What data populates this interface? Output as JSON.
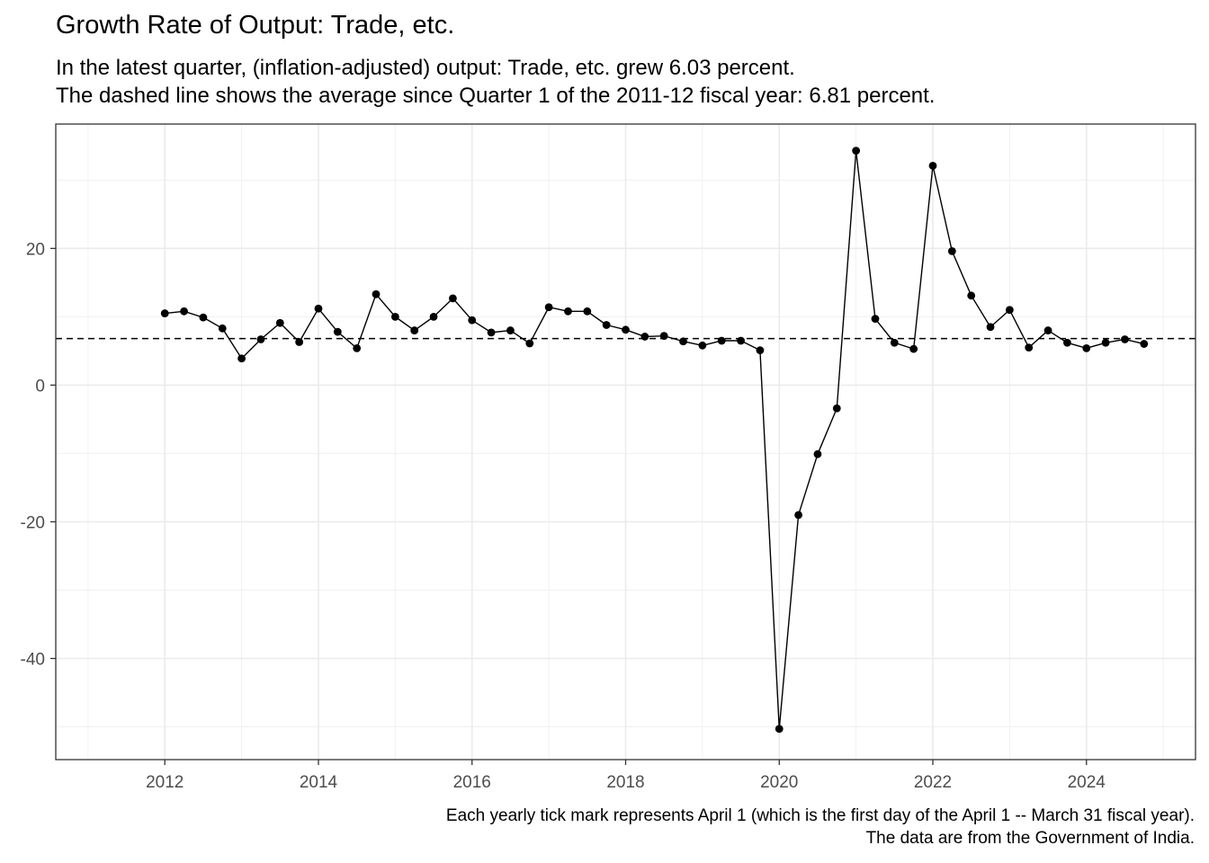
{
  "chart_data": {
    "type": "line",
    "title": "Growth Rate of Output: Trade, etc.",
    "subtitle": [
      "In the latest quarter, (inflation-adjusted) output: Trade, etc. grew 6.03 percent.",
      "The dashed line shows the average since Quarter 1 of the 2011-12 fiscal year: 6.81 percent."
    ],
    "caption": [
      "Each yearly tick mark represents April 1 (which is the first day of the April 1 -- March 31 fiscal year).",
      "The data are from the Government of India."
    ],
    "xlabel": "",
    "ylabel": "",
    "xlim": [
      2010.58,
      2025.42
    ],
    "ylim": [
      -54.8,
      38.2
    ],
    "x_ticks": [
      2012,
      2014,
      2016,
      2018,
      2020,
      2022,
      2024
    ],
    "y_ticks": [
      -40,
      -20,
      0,
      20
    ],
    "x_ticks_minor": [
      2011,
      2013,
      2015,
      2017,
      2019,
      2021,
      2023,
      2025
    ],
    "y_ticks_minor": [
      -50,
      -30,
      -10,
      10,
      30
    ],
    "grid": true,
    "legend": "none",
    "reference_line": {
      "y": 6.81,
      "style": "dashed"
    },
    "series": [
      {
        "x": [
          2012.0,
          2012.25,
          2012.5,
          2012.75,
          2013.0,
          2013.25,
          2013.5,
          2013.75,
          2014.0,
          2014.25,
          2014.5,
          2014.75,
          2015.0,
          2015.25,
          2015.5,
          2015.75,
          2016.0,
          2016.25,
          2016.5,
          2016.75,
          2017.0,
          2017.25,
          2017.5,
          2017.75,
          2018.0,
          2018.25,
          2018.5,
          2018.75,
          2019.0,
          2019.25,
          2019.5,
          2019.75,
          2020.0,
          2020.25,
          2020.5,
          2020.75,
          2021.0,
          2021.25,
          2021.5,
          2021.75,
          2022.0,
          2022.25,
          2022.5,
          2022.75,
          2023.0,
          2023.25,
          2023.5,
          2023.75,
          2024.0,
          2024.25,
          2024.5,
          2024.75
        ],
        "values": [
          10.5,
          10.8,
          9.9,
          8.3,
          3.9,
          6.7,
          9.1,
          6.3,
          11.2,
          7.8,
          5.4,
          13.3,
          10.0,
          8.0,
          10.0,
          12.7,
          9.5,
          7.7,
          8.0,
          6.1,
          11.4,
          10.8,
          10.8,
          8.8,
          8.1,
          7.1,
          7.2,
          6.4,
          5.8,
          6.5,
          6.5,
          5.1,
          -50.3,
          -19.0,
          -10.1,
          -3.4,
          34.3,
          9.7,
          6.2,
          5.3,
          32.1,
          19.6,
          13.1,
          8.5,
          11.0,
          5.5,
          8.0,
          6.2,
          5.4,
          6.2,
          6.7,
          6.03
        ]
      }
    ]
  }
}
